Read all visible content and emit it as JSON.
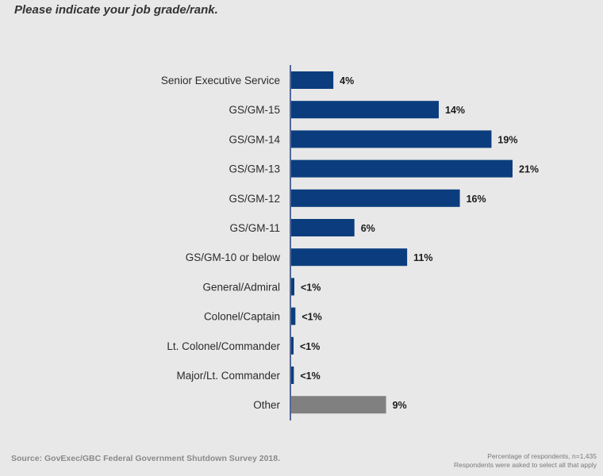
{
  "chart_data": {
    "type": "bar",
    "orientation": "horizontal",
    "title": "Please indicate your job grade/rank.",
    "categories": [
      "Senior Executive Service",
      "GS/GM-15",
      "GS/GM-14",
      "GS/GM-13",
      "GS/GM-12",
      "GS/GM-11",
      "GS/GM-10 or below",
      "General/Admiral",
      "Colonel/Captain",
      "Lt. Colonel/Commander",
      "Major/Lt. Commander",
      "Other"
    ],
    "values": [
      4,
      14,
      19,
      21,
      16,
      6,
      11,
      0.3,
      0.4,
      0.15,
      0.25,
      9
    ],
    "value_labels": [
      "4%",
      "14%",
      "19%",
      "21%",
      "16%",
      "6%",
      "11%",
      "<1%",
      "<1%",
      "<1%",
      "<1%",
      "9%"
    ],
    "colors": [
      "#0b3d7e",
      "#0b3d7e",
      "#0b3d7e",
      "#0b3d7e",
      "#0b3d7e",
      "#0b3d7e",
      "#0b3d7e",
      "#0b3d7e",
      "#0b3d7e",
      "#0b3d7e",
      "#0b3d7e",
      "#808080"
    ],
    "xlim": [
      0,
      21
    ],
    "xlabel": "",
    "ylabel": "",
    "grid": false
  },
  "source": "Source: GovExec/GBC Federal Government Shutdown Survey 2018.",
  "footnote": {
    "line1": "Percentage of respondents, n=1,435",
    "line2": "Respondents were asked to select all that apply"
  },
  "colors": {
    "background": "#e8e8e8",
    "bar_primary": "#0b3d7e",
    "bar_other": "#808080",
    "axis": "#1f3f7a"
  }
}
